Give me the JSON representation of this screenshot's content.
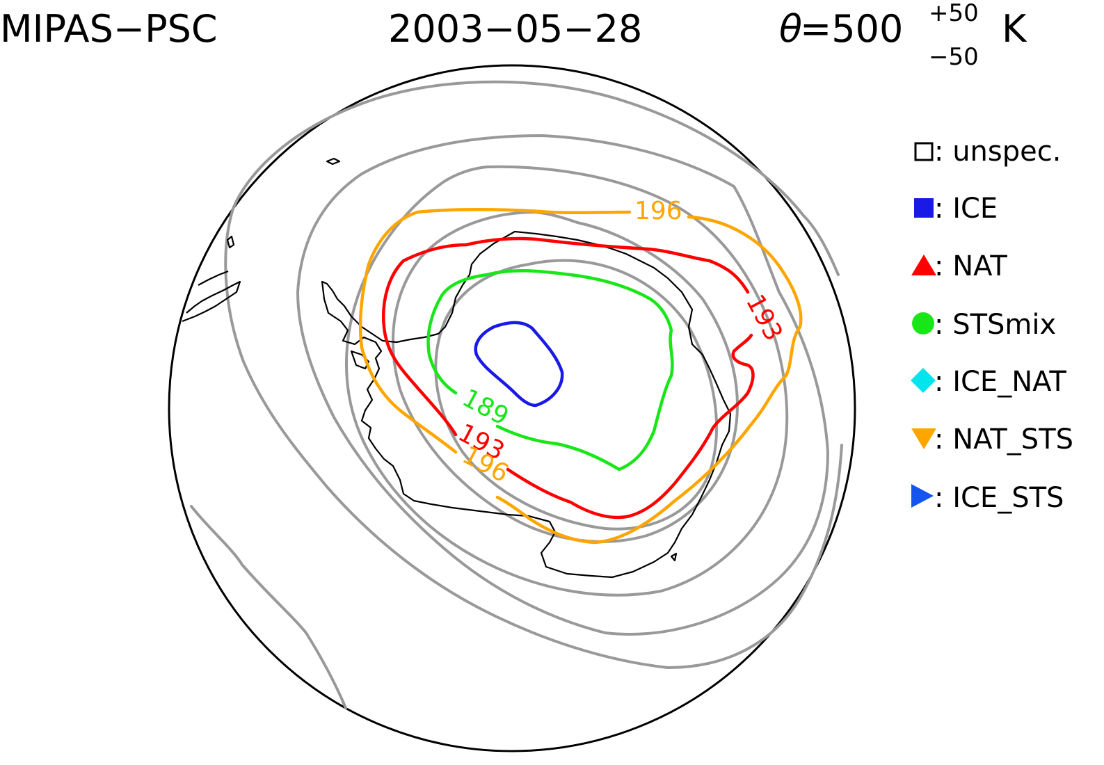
{
  "header": {
    "instrument": "MIPAS−PSC",
    "date": "2003−05−28",
    "theta_symbol": "θ",
    "theta_equals": "=500",
    "theta_plus": "+50",
    "theta_minus": "−50",
    "theta_unit": "K"
  },
  "legend": [
    {
      "label": ": unspec.",
      "symbol": "open-square",
      "color": "#000000"
    },
    {
      "label": ": ICE",
      "symbol": "filled-square",
      "color": "#1a1ae6"
    },
    {
      "label": ": NAT",
      "symbol": "triangle-up",
      "color": "#ff0000"
    },
    {
      "label": ": STSmix",
      "symbol": "circle",
      "color": "#19e619"
    },
    {
      "label": ": ICE_NAT",
      "symbol": "diamond",
      "color": "#00e5ee"
    },
    {
      "label": ": NAT_STS",
      "symbol": "triangle-down",
      "color": "#ffa500"
    },
    {
      "label": ": ICE_STS",
      "symbol": "triangle-right",
      "color": "#1455f0"
    }
  ],
  "contours": [
    {
      "value": "196",
      "color": "#ffa500"
    },
    {
      "value": "193",
      "color": "#ff0000"
    },
    {
      "value": "189",
      "color": "#19e619"
    }
  ],
  "colors": {
    "ice_contour": "#1a1ae6",
    "pv_contour": "#999999",
    "coastline": "#000000"
  }
}
